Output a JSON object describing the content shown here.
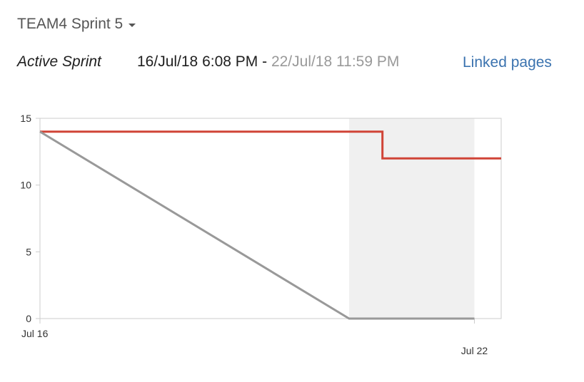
{
  "sprint": {
    "name": "TEAM4 Sprint 5",
    "state": "Active Sprint",
    "start": "16/Jul/18 6:08 PM",
    "separator": " - ",
    "end": "22/Jul/18 11:59 PM",
    "linked_pages": "Linked pages"
  },
  "icons": {
    "sprint_dropdown": "chevron-down-icon"
  },
  "colors": {
    "remaining_line": "#d04437",
    "guideline": "#999999",
    "non_working_band": "#f0f0f0",
    "link": "#3b73af"
  },
  "chart_data": {
    "type": "line",
    "title": "",
    "xlabel": "",
    "ylabel": "",
    "ylim": [
      0,
      15
    ],
    "y_ticks": [
      0,
      5,
      10,
      15
    ],
    "x_tick_labels": [
      "Jul 16",
      "Jul 22"
    ],
    "x_range_days": [
      0,
      6.37
    ],
    "x_tick_days": [
      0,
      6
    ],
    "non_working_days": [
      [
        4.27,
        6
      ]
    ],
    "series": [
      {
        "role": "remaining",
        "x_days": [
          0,
          4.73,
          4.73,
          6.37
        ],
        "values": [
          14,
          14,
          12,
          12
        ]
      },
      {
        "role": "guideline",
        "x_days": [
          0,
          4.27,
          6
        ],
        "values": [
          14,
          0,
          0
        ]
      }
    ]
  }
}
